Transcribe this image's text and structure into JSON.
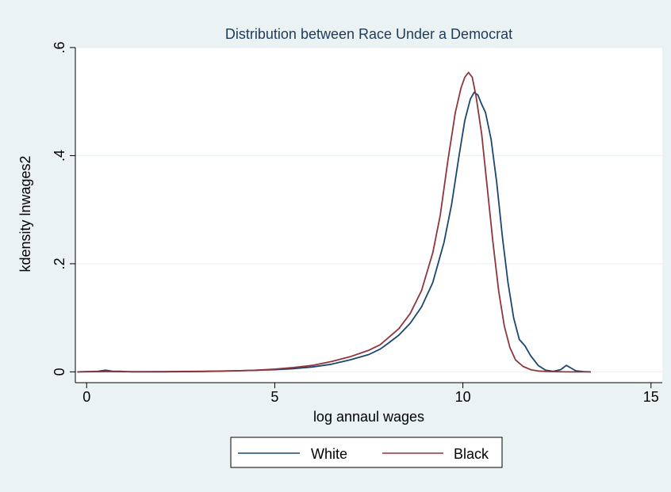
{
  "colors": {
    "background": "#eaf2f3",
    "plot_area": "#ffffff",
    "grid": "#eaf2f3",
    "white_series": "#1a476f",
    "black_series": "#90353b"
  },
  "chart_data": {
    "type": "line",
    "title": "Distribution between Race Under a Democrat",
    "xlabel": "log annaul wages",
    "ylabel": "kdensity lnwages2",
    "xlim": [
      -0.3,
      15.3
    ],
    "ylim": [
      -0.02,
      0.6
    ],
    "x_ticks": [
      {
        "value": 0,
        "label": "0"
      },
      {
        "value": 5,
        "label": "5"
      },
      {
        "value": 10,
        "label": "10"
      },
      {
        "value": 15,
        "label": "15"
      }
    ],
    "y_ticks": [
      {
        "value": 0,
        "label": "0"
      },
      {
        "value": 0.2,
        "label": ".2"
      },
      {
        "value": 0.4,
        "label": ".4"
      },
      {
        "value": 0.6,
        "label": ".6"
      }
    ],
    "grid": true,
    "legend_position": "bottom",
    "series": [
      {
        "name": "White",
        "color": "#1a476f",
        "points": [
          [
            -0.25,
            0.0
          ],
          [
            0.3,
            0.001
          ],
          [
            0.5,
            0.003
          ],
          [
            0.7,
            0.001
          ],
          [
            0.9,
            0.001
          ],
          [
            1.2,
            0.0
          ],
          [
            2.0,
            0.0
          ],
          [
            3.0,
            0.0005
          ],
          [
            4.0,
            0.002
          ],
          [
            4.5,
            0.003
          ],
          [
            5.0,
            0.004
          ],
          [
            5.5,
            0.006
          ],
          [
            6.0,
            0.009
          ],
          [
            6.5,
            0.014
          ],
          [
            7.0,
            0.022
          ],
          [
            7.5,
            0.032
          ],
          [
            7.8,
            0.042
          ],
          [
            8.0,
            0.052
          ],
          [
            8.3,
            0.068
          ],
          [
            8.6,
            0.09
          ],
          [
            8.9,
            0.12
          ],
          [
            9.2,
            0.165
          ],
          [
            9.5,
            0.24
          ],
          [
            9.7,
            0.31
          ],
          [
            9.9,
            0.4
          ],
          [
            10.05,
            0.465
          ],
          [
            10.2,
            0.505
          ],
          [
            10.3,
            0.517
          ],
          [
            10.4,
            0.512
          ],
          [
            10.5,
            0.495
          ],
          [
            10.6,
            0.48
          ],
          [
            10.75,
            0.43
          ],
          [
            10.9,
            0.35
          ],
          [
            11.05,
            0.25
          ],
          [
            11.2,
            0.165
          ],
          [
            11.35,
            0.1
          ],
          [
            11.5,
            0.06
          ],
          [
            11.65,
            0.048
          ],
          [
            11.8,
            0.03
          ],
          [
            12.0,
            0.012
          ],
          [
            12.2,
            0.003
          ],
          [
            12.4,
            0.001
          ],
          [
            12.6,
            0.004
          ],
          [
            12.75,
            0.012
          ],
          [
            12.85,
            0.008
          ],
          [
            13.0,
            0.002
          ],
          [
            13.2,
            0.0005
          ],
          [
            13.4,
            0.0
          ]
        ]
      },
      {
        "name": "Black",
        "color": "#90353b",
        "points": [
          [
            -0.25,
            0.0
          ],
          [
            0.5,
            0.0005
          ],
          [
            1.0,
            0.0003
          ],
          [
            2.0,
            0.0005
          ],
          [
            3.0,
            0.001
          ],
          [
            4.0,
            0.002
          ],
          [
            4.5,
            0.003
          ],
          [
            5.0,
            0.005
          ],
          [
            5.5,
            0.008
          ],
          [
            6.0,
            0.012
          ],
          [
            6.5,
            0.019
          ],
          [
            7.0,
            0.028
          ],
          [
            7.5,
            0.04
          ],
          [
            7.8,
            0.05
          ],
          [
            8.0,
            0.062
          ],
          [
            8.3,
            0.08
          ],
          [
            8.6,
            0.108
          ],
          [
            8.9,
            0.15
          ],
          [
            9.2,
            0.22
          ],
          [
            9.4,
            0.29
          ],
          [
            9.6,
            0.39
          ],
          [
            9.8,
            0.48
          ],
          [
            9.95,
            0.525
          ],
          [
            10.05,
            0.545
          ],
          [
            10.15,
            0.554
          ],
          [
            10.25,
            0.545
          ],
          [
            10.35,
            0.51
          ],
          [
            10.5,
            0.44
          ],
          [
            10.65,
            0.34
          ],
          [
            10.8,
            0.24
          ],
          [
            10.95,
            0.15
          ],
          [
            11.1,
            0.085
          ],
          [
            11.25,
            0.045
          ],
          [
            11.4,
            0.022
          ],
          [
            11.6,
            0.01
          ],
          [
            11.8,
            0.004
          ],
          [
            12.0,
            0.0015
          ],
          [
            12.3,
            0.0005
          ],
          [
            12.8,
            0.0
          ],
          [
            13.4,
            0.0
          ]
        ]
      }
    ]
  }
}
